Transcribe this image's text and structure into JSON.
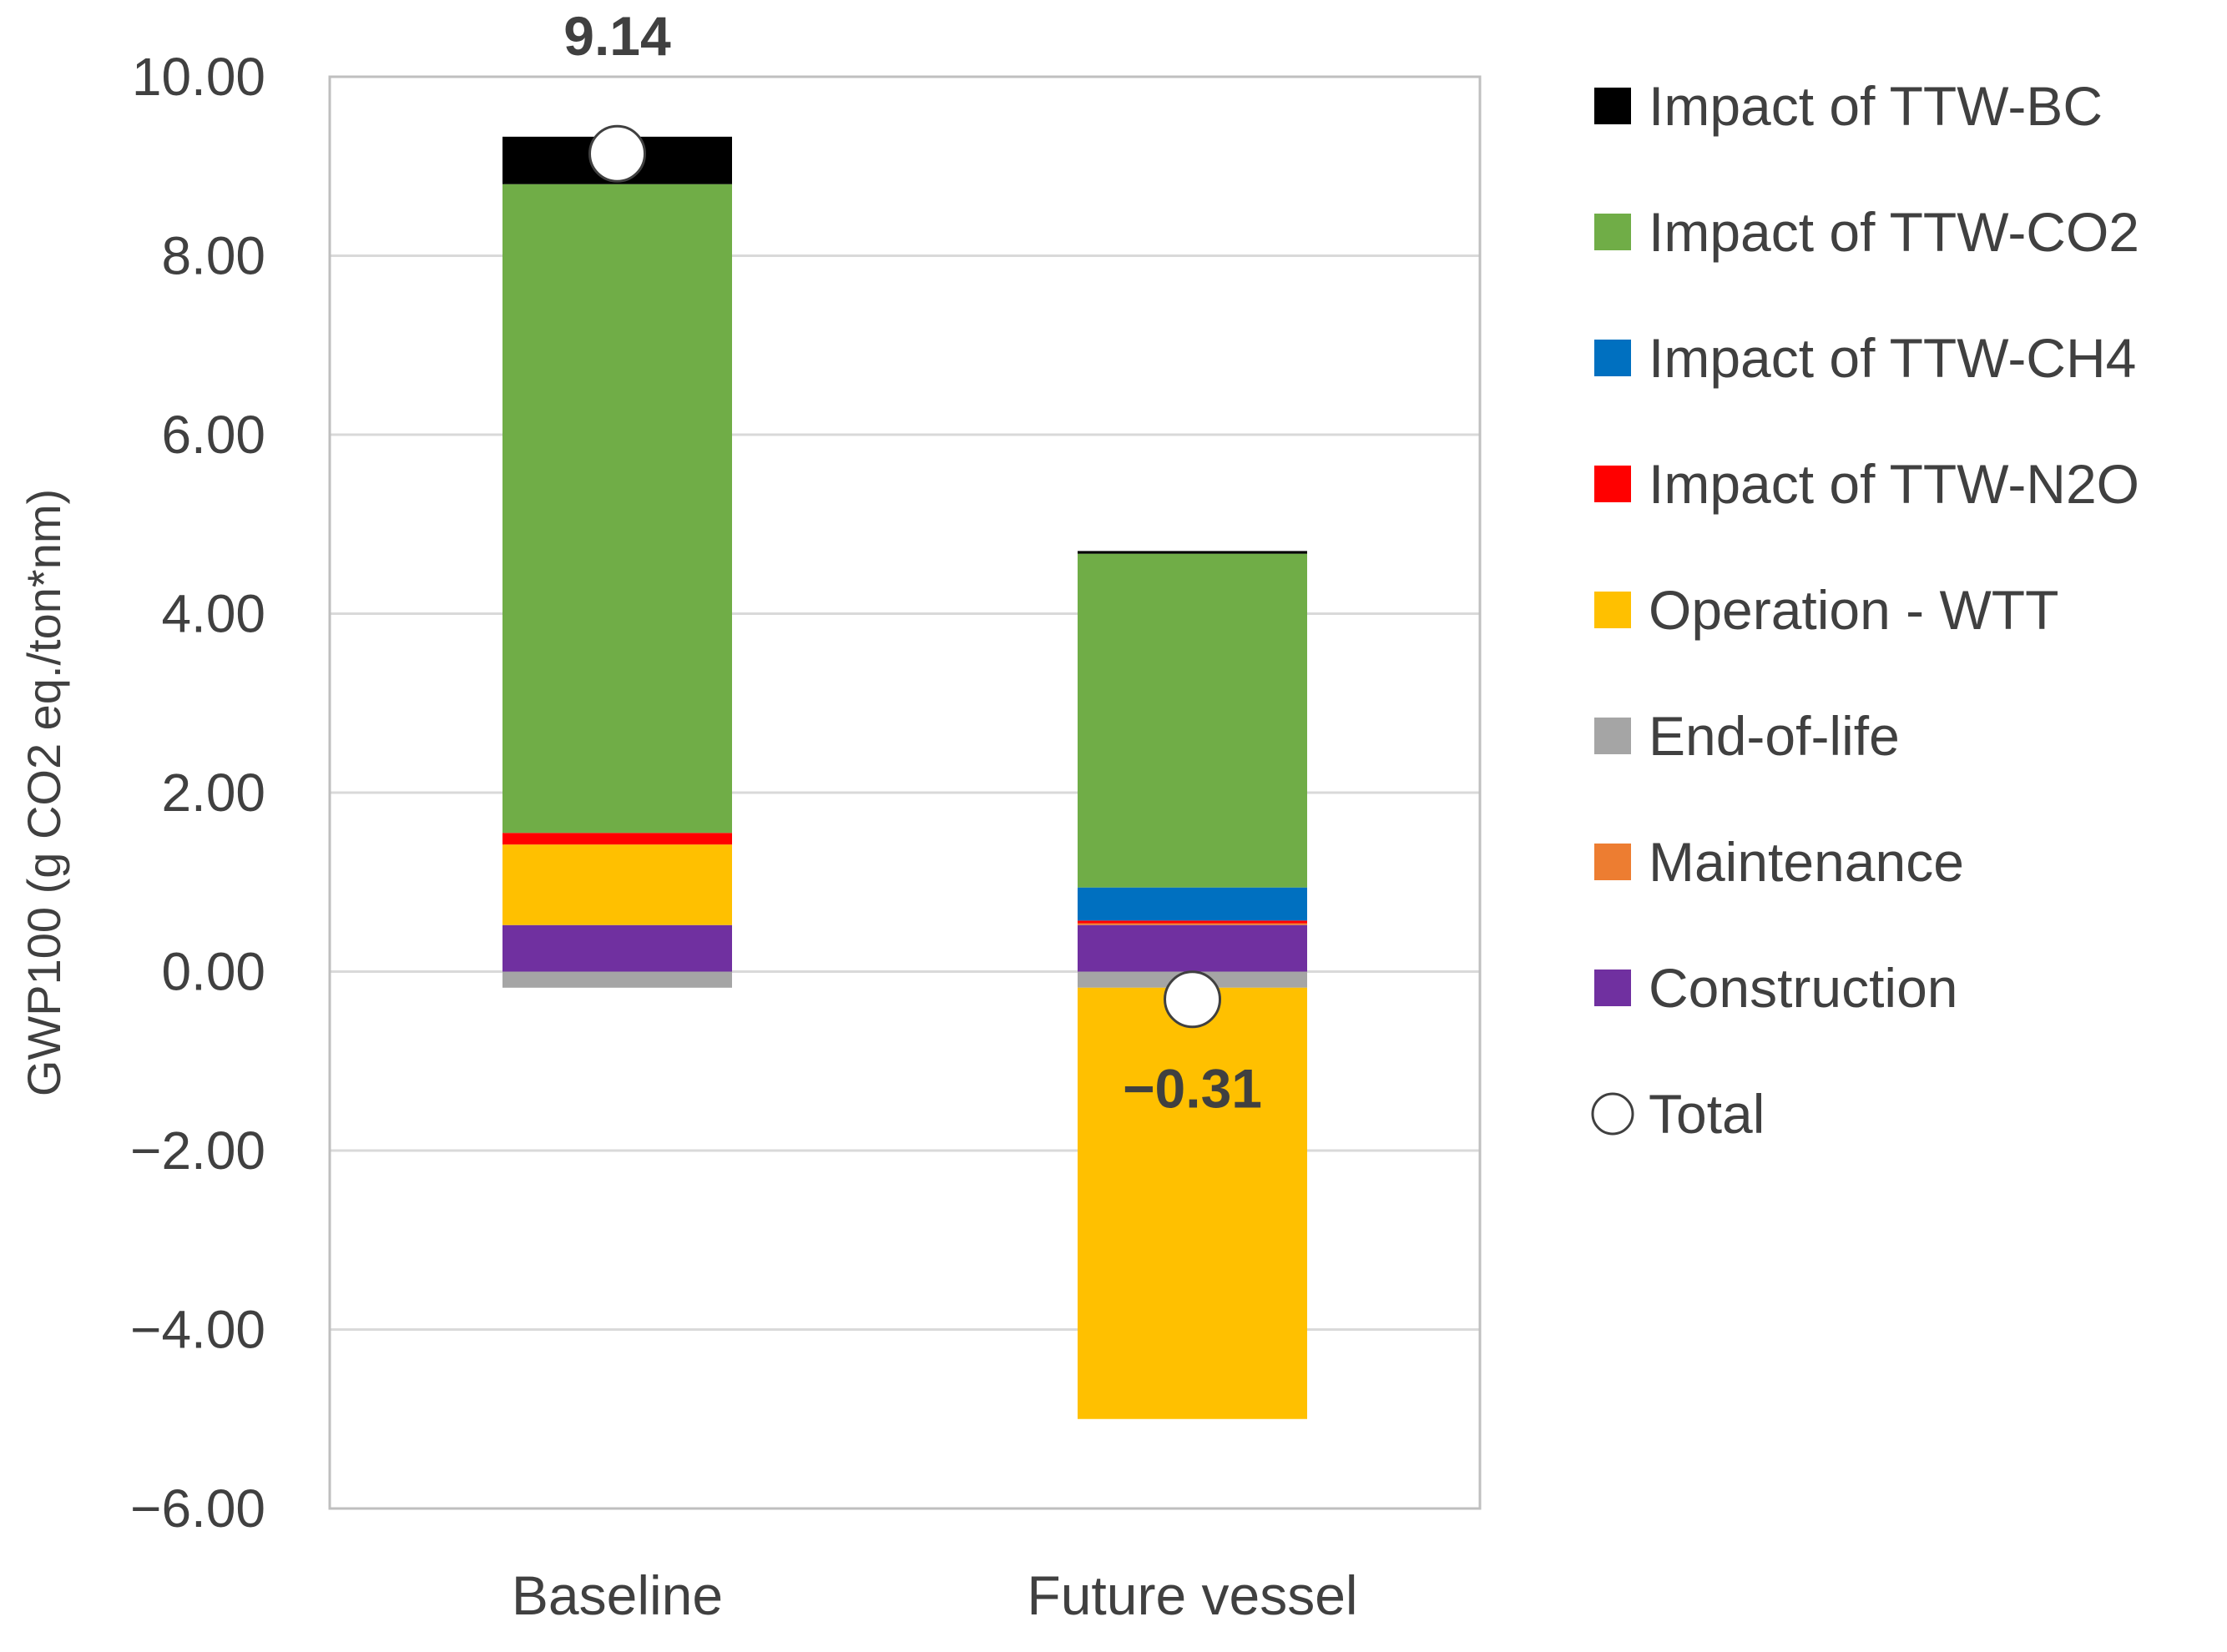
{
  "chart_data": {
    "type": "bar",
    "stacked": true,
    "title": "",
    "xlabel": "",
    "ylabel": "GWP100 (g CO2 eq./ton*nm)",
    "ylim": [
      -6,
      10
    ],
    "yticks": [
      10,
      8,
      6,
      4,
      2,
      0,
      -2,
      -4,
      -6
    ],
    "ytick_labels": [
      "10.00",
      "8.00",
      "6.00",
      "4.00",
      "2.00",
      "0.00",
      "−2.00",
      "−4.00",
      "−6.00"
    ],
    "grid": true,
    "legend_position": "right",
    "categories": [
      "Baseline",
      "Future vessel"
    ],
    "series": [
      {
        "name": "Construction",
        "color": "#7030A0",
        "values": [
          0.52,
          0.52
        ]
      },
      {
        "name": "Maintenance",
        "color": "#ED7D31",
        "values": [
          0.0,
          0.02
        ]
      },
      {
        "name": "End-of-life",
        "color": "#A5A5A5",
        "values": [
          -0.18,
          -0.18
        ]
      },
      {
        "name": "Operation - WTT",
        "color": "#FFC000",
        "values": [
          0.9,
          -4.82
        ]
      },
      {
        "name": "Impact of TTW-N2O",
        "color": "#FF0000",
        "values": [
          0.13,
          0.03
        ]
      },
      {
        "name": "Impact of TTW-CH4",
        "color": "#0070C0",
        "values": [
          0.0,
          0.37
        ]
      },
      {
        "name": "Impact of TTW-CO2",
        "color": "#70AD47",
        "values": [
          7.25,
          3.73
        ]
      },
      {
        "name": "Impact of TTW-BC",
        "color": "#000000",
        "values": [
          0.53,
          0.03
        ]
      }
    ],
    "legend_order": [
      "Impact of TTW-BC",
      "Impact of TTW-CO2",
      "Impact of TTW-CH4",
      "Impact of TTW-N2O",
      "Operation - WTT",
      "End-of-life",
      "Maintenance",
      "Construction"
    ],
    "total": {
      "name": "Total",
      "values": [
        9.14,
        -0.31
      ],
      "labels": [
        "9.14",
        "−0.31"
      ]
    }
  }
}
